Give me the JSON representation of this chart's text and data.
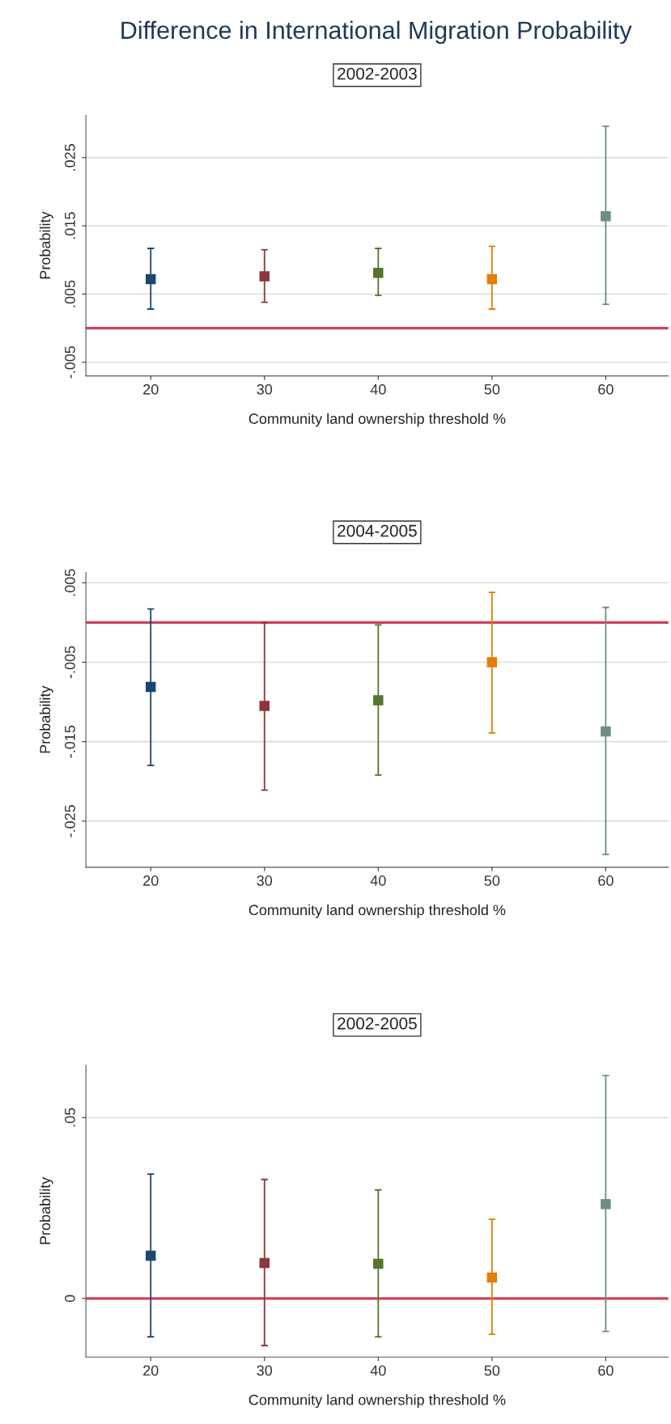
{
  "chart_data": [
    {
      "type": "scatter",
      "title": "Difference in International Migration Probability",
      "subtitle": "2002-2003",
      "xlabel": "Community land ownership threshold %",
      "ylabel": "Probability",
      "x": [
        20,
        30,
        40,
        50,
        60
      ],
      "values": [
        0.0072,
        0.0076,
        0.0081,
        0.0072,
        0.0164
      ],
      "errors": [
        [
          0.0028,
          0.0117
        ],
        [
          0.0038,
          0.0115
        ],
        [
          0.0048,
          0.0117
        ],
        [
          0.0028,
          0.012
        ],
        [
          0.0035,
          0.0296
        ]
      ],
      "colors": [
        "#1a476f",
        "#90353b",
        "#55752f",
        "#e37e00",
        "#6e8e84"
      ],
      "xlim": [
        14.3,
        65.5
      ],
      "xticks": [
        20,
        30,
        40,
        50,
        60
      ],
      "ylim": [
        -0.007,
        0.0312
      ],
      "yticks": [
        {
          "value": -0.005,
          "label": "-.005"
        },
        {
          "value": 0.005,
          "label": ".005"
        },
        {
          "value": 0.015,
          "label": ".015"
        },
        {
          "value": 0.025,
          "label": ".025"
        }
      ],
      "ref_lines": [
        {
          "axis": "y",
          "value": 0,
          "color": "#d0405e"
        }
      ],
      "grid": "y",
      "marker": "square"
    },
    {
      "type": "scatter",
      "subtitle": "2004-2005",
      "xlabel": "Community land ownership threshold %",
      "ylabel": "Probability",
      "x": [
        20,
        30,
        40,
        50,
        60
      ],
      "values": [
        -0.0081,
        -0.0105,
        -0.0098,
        -0.005,
        -0.0137
      ],
      "errors": [
        [
          -0.018,
          0.0017
        ],
        [
          -0.0211,
          0.0
        ],
        [
          -0.0192,
          -0.0003
        ],
        [
          -0.0139,
          0.0038
        ],
        [
          -0.0292,
          0.0019
        ]
      ],
      "colors": [
        "#1a476f",
        "#90353b",
        "#55752f",
        "#e37e00",
        "#6e8e84"
      ],
      "xlim": [
        14.3,
        65.5
      ],
      "xticks": [
        20,
        30,
        40,
        50,
        60
      ],
      "ylim": [
        -0.0308,
        0.0063
      ],
      "yticks": [
        {
          "value": -0.025,
          "label": "-.025"
        },
        {
          "value": -0.015,
          "label": "-.015"
        },
        {
          "value": -0.005,
          "label": "-.005"
        },
        {
          "value": 0.005,
          "label": ".005"
        }
      ],
      "ref_lines": [
        {
          "axis": "y",
          "value": 0,
          "color": "#d0405e"
        }
      ],
      "grid": "y",
      "marker": "square"
    },
    {
      "type": "scatter",
      "subtitle": "2002-2005",
      "xlabel": "Community land ownership threshold %",
      "ylabel": "Probability",
      "x": [
        20,
        30,
        40,
        50,
        60
      ],
      "values": [
        0.0118,
        0.0098,
        0.0096,
        0.0058,
        0.0261
      ],
      "errors": [
        [
          -0.0106,
          0.0344
        ],
        [
          -0.013,
          0.0329
        ],
        [
          -0.0106,
          0.03
        ],
        [
          -0.0099,
          0.0219
        ],
        [
          -0.0091,
          0.0616
        ]
      ],
      "colors": [
        "#1a476f",
        "#90353b",
        "#55752f",
        "#e37e00",
        "#6e8e84"
      ],
      "xlim": [
        14.3,
        65.5
      ],
      "xticks": [
        20,
        30,
        40,
        50,
        60
      ],
      "ylim": [
        -0.0162,
        0.0645
      ],
      "yticks": [
        {
          "value": 0,
          "label": "0"
        },
        {
          "value": 0.05,
          "label": ".05"
        }
      ],
      "ref_lines": [
        {
          "axis": "y",
          "value": 0,
          "color": "#d0405e"
        }
      ],
      "grid": "y",
      "marker": "square"
    }
  ]
}
